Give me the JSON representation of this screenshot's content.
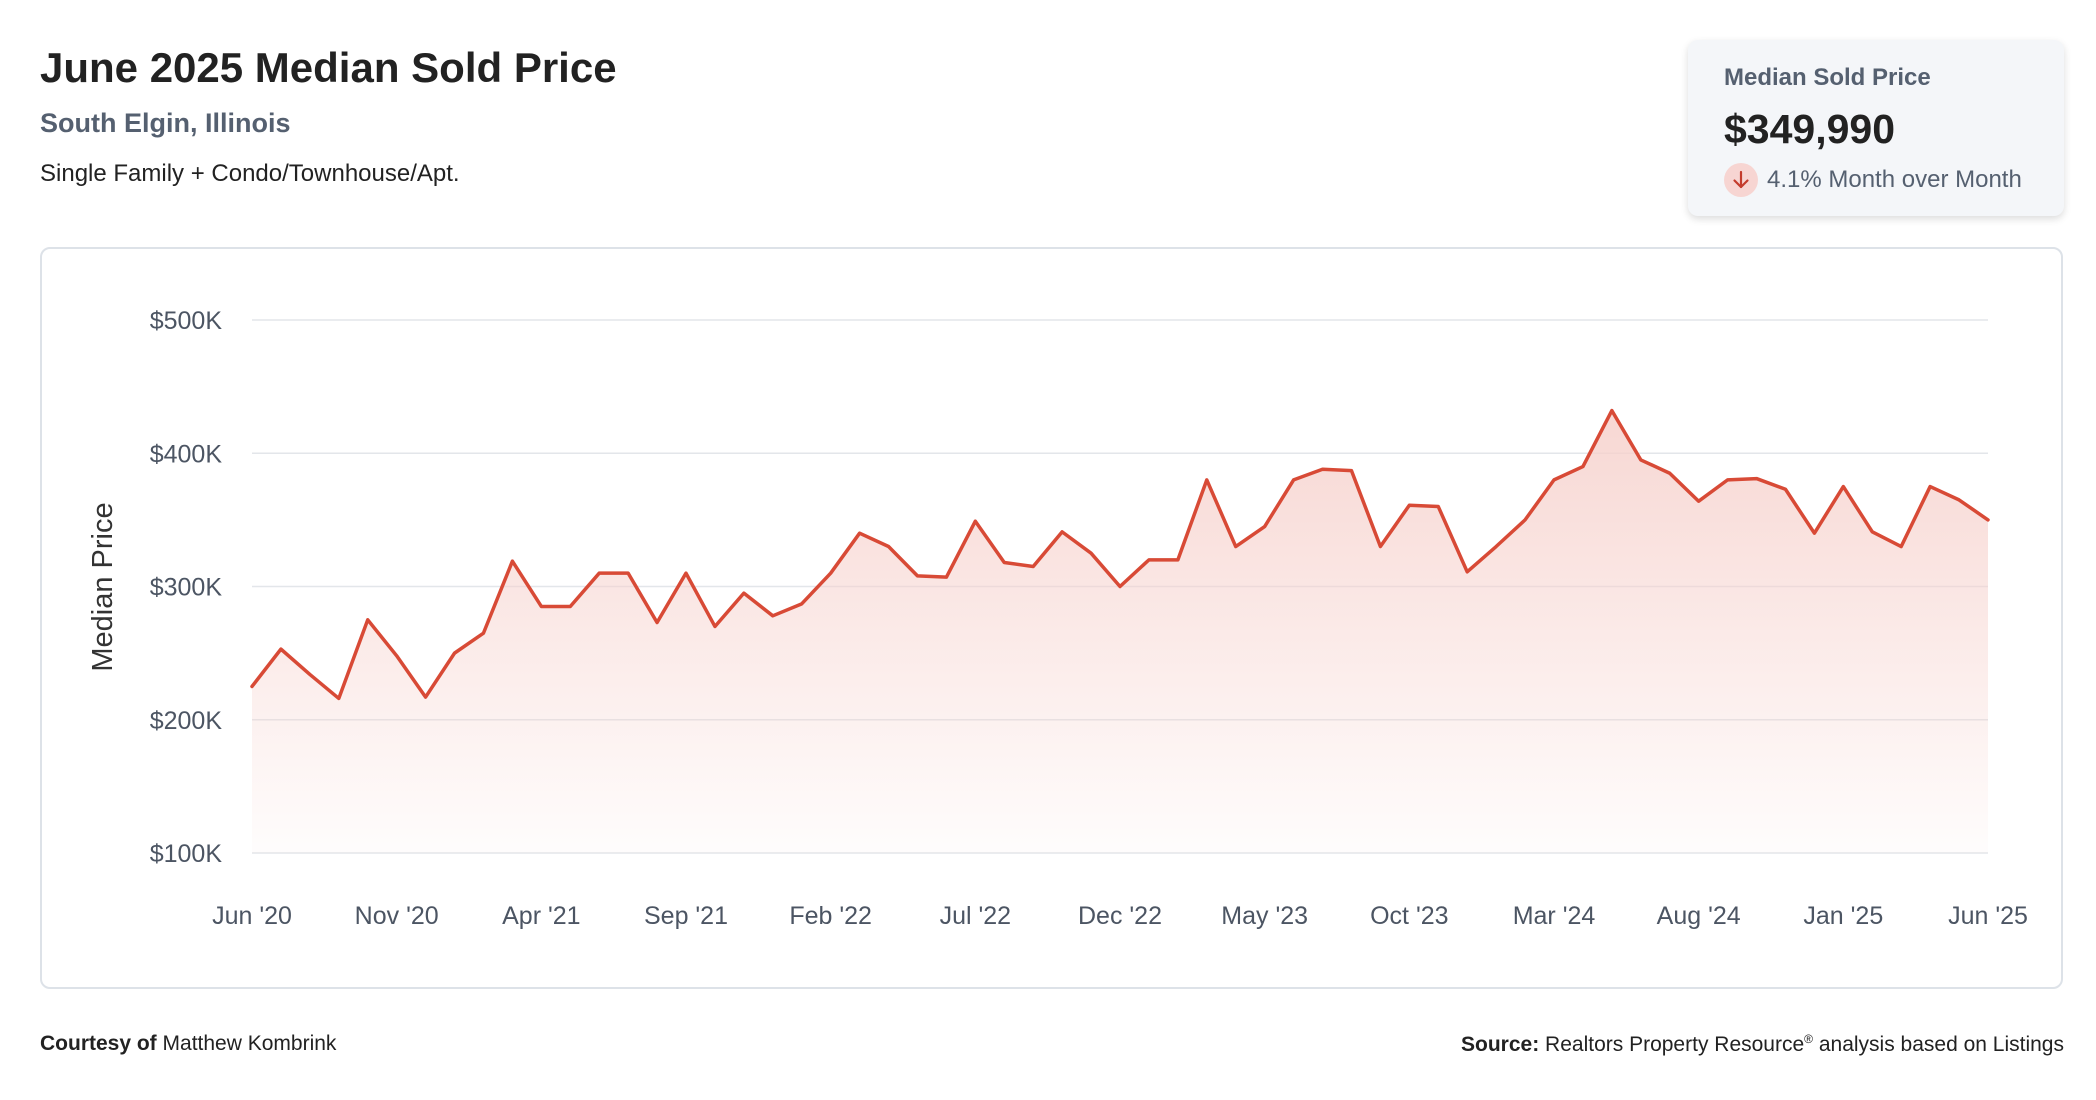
{
  "header": {
    "title": "June 2025 Median Sold Price",
    "location": "South Elgin, Illinois",
    "property_types": "Single Family + Condo/Townhouse/Apt."
  },
  "stat_card": {
    "label": "Median Sold Price",
    "value": "$349,990",
    "change_text": "4.1% Month over Month",
    "direction": "down",
    "arrow_icon": "arrow-down-icon"
  },
  "footer": {
    "courtesy_label": "Courtesy of",
    "courtesy_name": "Matthew Kombrink",
    "source_label": "Source:",
    "source_text_pre": "Realtors Property Resource",
    "source_mark": "®",
    "source_text_post": " analysis based on Listings"
  },
  "colors": {
    "line": "#d84a36",
    "fill_top": "#f6d0cb",
    "grid": "#e3e6ea",
    "axis_text": "#4c5563",
    "subtitle": "#556070",
    "arrow": "#c43c2d",
    "arrow_bg": "#f7d5d2"
  },
  "chart_data": {
    "type": "area",
    "title": "",
    "xlabel": "",
    "ylabel": "Median Price",
    "x_tick_labels": [
      "Jun '20",
      "Nov '20",
      "Apr '21",
      "Sep '21",
      "Feb '22",
      "Jul '22",
      "Dec '22",
      "May '23",
      "Oct '23",
      "Mar '24",
      "Aug '24",
      "Jan '25",
      "Jun '25"
    ],
    "x_tick_every_n_points": 5,
    "y_ticks": [
      100000,
      200000,
      300000,
      400000,
      500000
    ],
    "y_tick_labels": [
      "$100K",
      "$200K",
      "$300K",
      "$400K",
      "$500K"
    ],
    "ylim": [
      100000,
      500000
    ],
    "grid": true,
    "legend": "none",
    "series": [
      {
        "values": [
          225000,
          253000,
          234000,
          216000,
          275000,
          248000,
          217000,
          250000,
          265000,
          319000,
          285000,
          285000,
          310000,
          310000,
          273000,
          310000,
          270000,
          295000,
          278000,
          287000,
          310000,
          340000,
          330000,
          308000,
          307000,
          349000,
          318000,
          315000,
          341000,
          325000,
          300000,
          320000,
          320000,
          380000,
          330000,
          345000,
          380000,
          388000,
          387000,
          330000,
          361000,
          360000,
          311000,
          330000,
          350000,
          380000,
          390000,
          432000,
          395000,
          385000,
          364000,
          380000,
          381000,
          373000,
          340000,
          375000,
          341000,
          330000,
          375000,
          365000,
          349990
        ]
      }
    ]
  }
}
